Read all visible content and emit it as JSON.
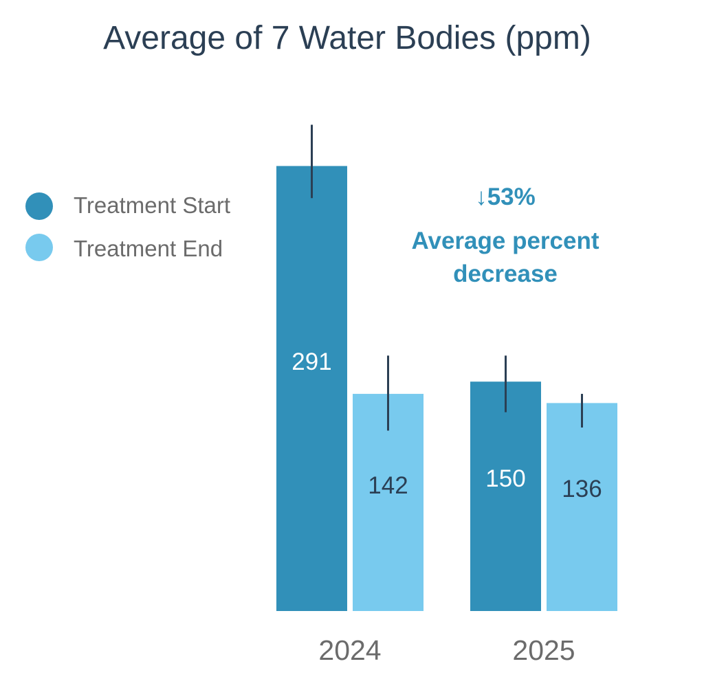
{
  "chart_data": {
    "type": "bar",
    "title": "Average of 7 Water Bodies (ppm)",
    "xlabel": "",
    "ylabel": "",
    "categories": [
      "2024",
      "2025"
    ],
    "series": [
      {
        "name": "Treatment Start",
        "values": [
          291,
          150
        ],
        "error_low": [
          270,
          130
        ],
        "error_high": [
          318,
          167
        ],
        "color": "#3190b9"
      },
      {
        "name": "Treatment End",
        "values": [
          142,
          136
        ],
        "error_low": [
          118,
          120
        ],
        "error_high": [
          167,
          142
        ],
        "color": "#78caee"
      }
    ],
    "ylim": [
      0,
      320
    ],
    "grid": false,
    "legend_position": "left",
    "annotation": {
      "arrow": "↓",
      "percent": "53%",
      "line1": "Average percent",
      "line2": "decrease",
      "color": "#3190b9"
    },
    "title_color": "#2b3f54",
    "label_color": "#6b6b6b",
    "errorbar_color": "#2b3f54"
  }
}
